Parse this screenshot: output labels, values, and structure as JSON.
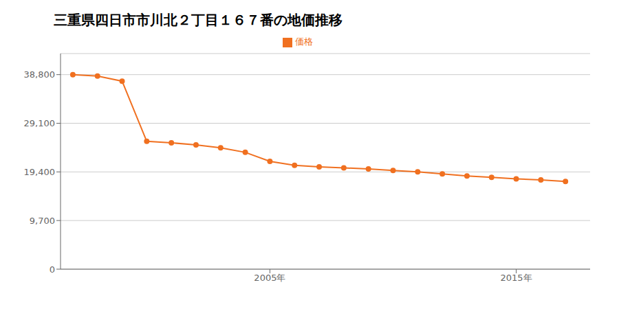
{
  "chart_data": {
    "type": "line",
    "title": "三重県四日市市川北２丁目１６７番の地価推移",
    "x": [
      1997,
      1998,
      1999,
      2000,
      2001,
      2002,
      2003,
      2004,
      2005,
      2006,
      2007,
      2008,
      2009,
      2010,
      2011,
      2012,
      2013,
      2014,
      2015,
      2016,
      2017
    ],
    "series": [
      {
        "name": "価格",
        "color": "#f07020",
        "marker": "circle",
        "values": [
          38800,
          38500,
          37500,
          25500,
          25200,
          24800,
          24200,
          23300,
          21500,
          20700,
          20400,
          20200,
          20000,
          19700,
          19400,
          19000,
          18600,
          18300,
          18000,
          17800,
          17500
        ]
      }
    ],
    "xlim": [
      1996.5,
      2018
    ],
    "xticks": [
      {
        "value": 2005,
        "label": "2005年"
      },
      {
        "value": 2015,
        "label": "2015年"
      }
    ],
    "ylim": [
      0,
      43000
    ],
    "yticks": [
      0,
      {
        "value": 9700,
        "label": "9,700"
      },
      {
        "value": 19400,
        "label": "19,400"
      },
      {
        "value": 29100,
        "label": "29,100"
      },
      {
        "value": 38800,
        "label": "38,800"
      }
    ],
    "grid": "y",
    "legend": "top"
  }
}
